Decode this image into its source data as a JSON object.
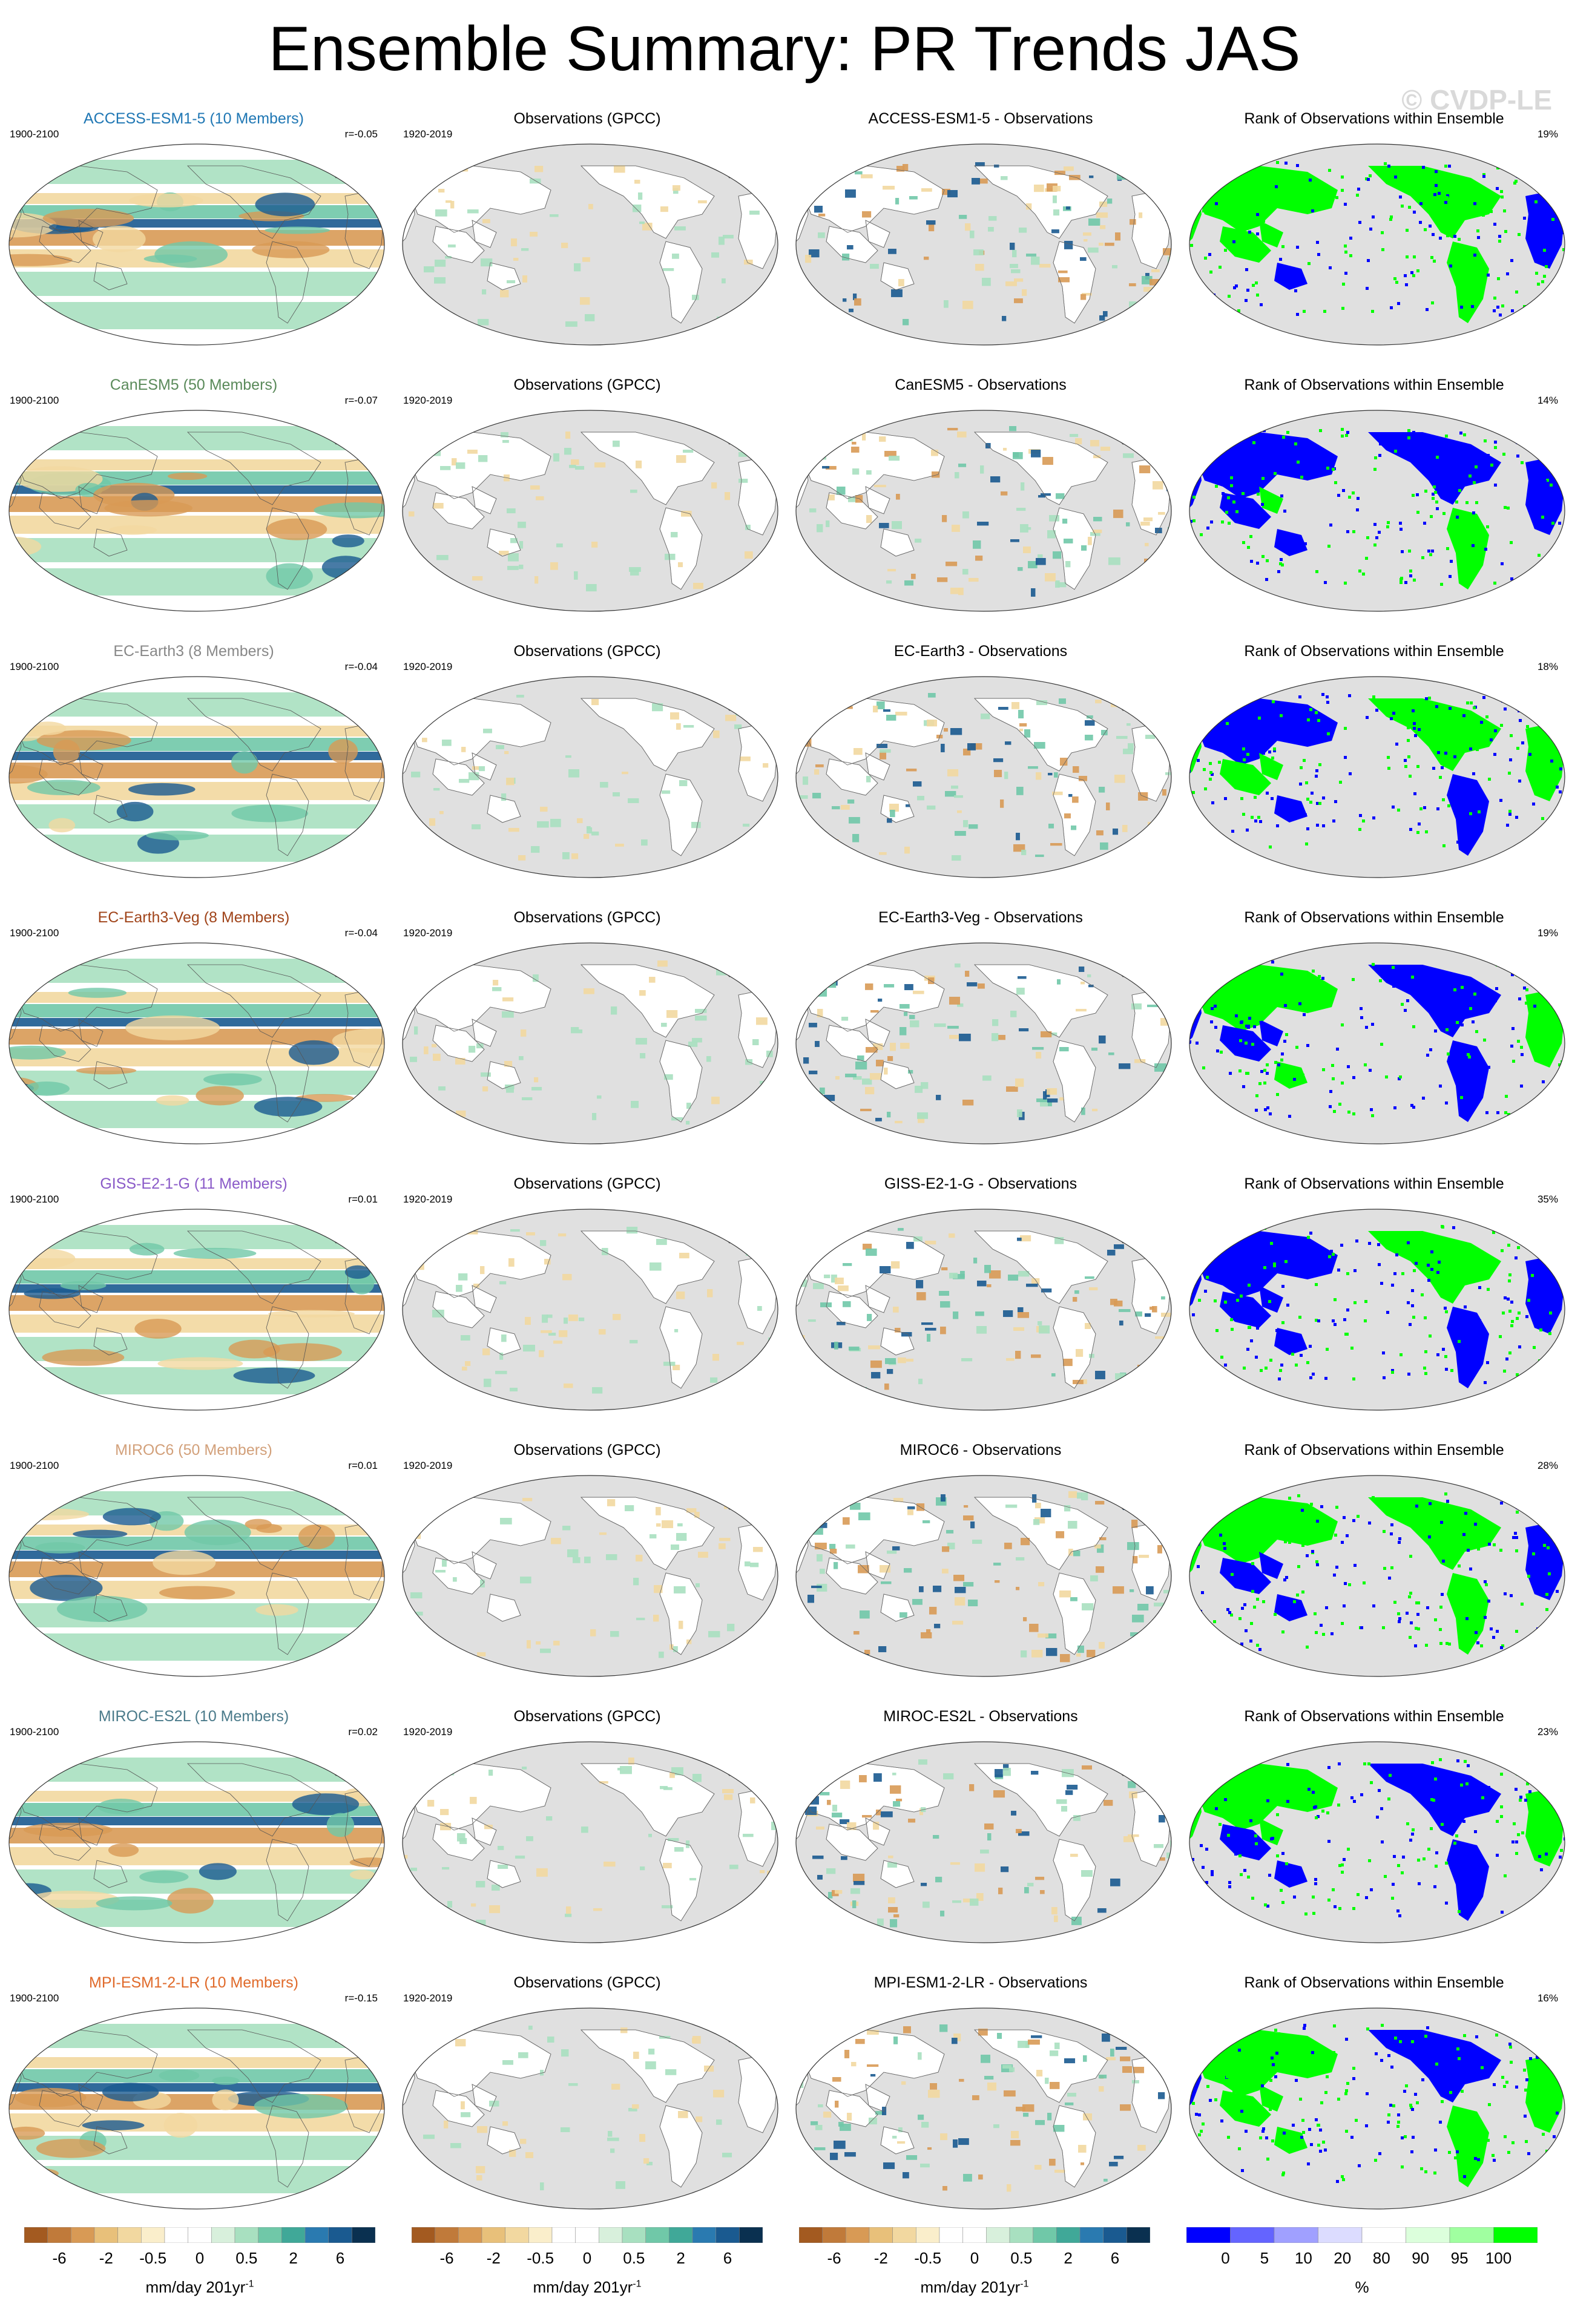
{
  "title": "Ensemble Summary: PR Trends JAS",
  "watermark": "© CVDP-LE",
  "columns": {
    "obs_title": "Observations (GPCC)",
    "rank_title": "Rank of Observations within Ensemble",
    "model_period": "1900-2100",
    "obs_period": "1920-2019"
  },
  "rows": [
    {
      "model_label": "ACCESS-ESM1-5 (10 Members)",
      "model_color": "#1f77b4",
      "r": "r=-0.05",
      "diff_title": "ACCESS-ESM1-5 - Observations",
      "rank_pct": "19%"
    },
    {
      "model_label": "CanESM5 (50 Members)",
      "model_color": "#5a8a5a",
      "r": "r=-0.07",
      "diff_title": "CanESM5 - Observations",
      "rank_pct": "14%"
    },
    {
      "model_label": "EC-Earth3 (8 Members)",
      "model_color": "#888888",
      "r": "r=-0.04",
      "diff_title": "EC-Earth3 - Observations",
      "rank_pct": "18%"
    },
    {
      "model_label": "EC-Earth3-Veg (8 Members)",
      "model_color": "#a0441a",
      "r": "r=-0.04",
      "diff_title": "EC-Earth3-Veg - Observations",
      "rank_pct": "19%"
    },
    {
      "model_label": "GISS-E2-1-G (11 Members)",
      "model_color": "#8a5ac8",
      "r": "r=0.01",
      "diff_title": "GISS-E2-1-G - Observations",
      "rank_pct": "35%"
    },
    {
      "model_label": "MIROC6 (50 Members)",
      "model_color": "#d2a07a",
      "r": "r=0.01",
      "diff_title": "MIROC6 - Observations",
      "rank_pct": "28%"
    },
    {
      "model_label": "MIROC-ES2L (10 Members)",
      "model_color": "#4a7a8a",
      "r": "r=0.02",
      "diff_title": "MIROC-ES2L - Observations",
      "rank_pct": "23%"
    },
    {
      "model_label": "MPI-ESM1-2-LR (10 Members)",
      "model_color": "#e06a2a",
      "r": "r=-0.15",
      "diff_title": "MPI-ESM1-2-LR - Observations",
      "rank_pct": "16%"
    }
  ],
  "colorbar_trend": {
    "ticks": [
      "-6",
      "-2",
      "-0.5",
      "0",
      "0.5",
      "2",
      "6"
    ],
    "unit_text": "mm/day 201yr",
    "unit_sup": "-1",
    "colors": [
      "#a35a20",
      "#c07a3a",
      "#d89a55",
      "#e8c07a",
      "#f2d8a0",
      "#faeecb",
      "#ffffff",
      "#ffffff",
      "#d8f0dc",
      "#a8e0c0",
      "#70c8a8",
      "#40a898",
      "#2a7ab0",
      "#1a5a90",
      "#0a3050"
    ]
  },
  "colorbar_rank": {
    "ticks": [
      "0",
      "5",
      "10",
      "20",
      "80",
      "90",
      "95",
      "100"
    ],
    "unit_text": "%",
    "colors": [
      "#0000ff",
      "#6464ff",
      "#a0a0ff",
      "#dcdcff",
      "#ffffff",
      "#dcffdc",
      "#a0ffa0",
      "#00ff00"
    ]
  },
  "map_colors": {
    "ocean_gray": "#e0e0e0",
    "land_white": "#ffffff",
    "rank_blue": "#0000ff",
    "rank_green": "#00ff00",
    "wet_light": "#a8e0c0",
    "wet_mid": "#70c8a8",
    "wet_dark": "#1a5a90",
    "dry_light": "#f2d8a0",
    "dry_mid": "#d89a55"
  }
}
